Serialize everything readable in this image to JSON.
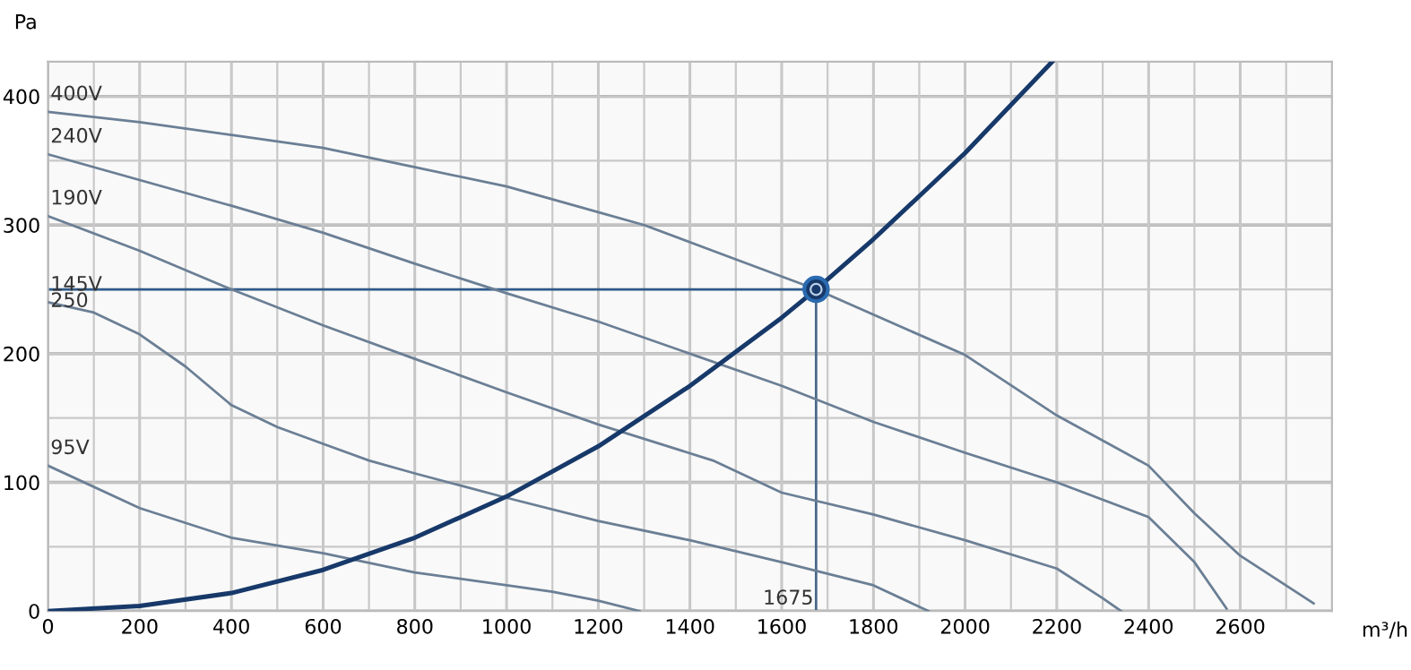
{
  "chart_data": {
    "type": "line",
    "xlabel": "m³/h",
    "ylabel": "Pa",
    "xlim": [
      0,
      2800
    ],
    "ylim": [
      0,
      427
    ],
    "xticks": [
      0,
      {
        "value": 100,
        "label": null
      },
      200,
      {
        "value": 300,
        "label": null
      },
      400,
      {
        "value": 500,
        "label": null
      },
      600,
      {
        "value": 700,
        "label": null
      },
      800,
      {
        "value": 900,
        "label": null
      },
      1000,
      {
        "value": 1100,
        "label": null
      },
      1200,
      {
        "value": 1300,
        "label": null
      },
      1400,
      {
        "value": 1500,
        "label": null
      },
      1600,
      {
        "value": 1700,
        "label": null
      },
      1800,
      {
        "value": 1900,
        "label": null
      },
      2000,
      {
        "value": 2100,
        "label": null
      },
      2200,
      {
        "value": 2300,
        "label": null
      },
      2400,
      {
        "value": 2500,
        "label": null
      },
      2600,
      {
        "value": 2700,
        "label": null
      }
    ],
    "yticks": [
      0,
      {
        "value": 50,
        "label": null
      },
      100,
      {
        "value": 150,
        "label": null
      },
      200,
      {
        "value": 250,
        "label": null
      },
      300,
      {
        "value": 350,
        "label": null
      },
      400
    ],
    "grid": true,
    "legend": false,
    "marker": "none",
    "line_style": "solid",
    "series": [
      {
        "name": "400V",
        "color": "#6b7f95",
        "x": [
          0,
          200,
          400,
          600,
          800,
          1000,
          1200,
          1300,
          1450,
          1675,
          2000,
          2200,
          2400,
          2500,
          2600,
          2760
        ],
        "values": [
          388,
          380,
          370,
          360,
          345,
          330,
          310,
          300,
          280,
          250,
          199,
          152,
          113,
          76,
          43,
          6
        ]
      },
      {
        "name": "240V",
        "color": "#6b7f95",
        "x": [
          0,
          400,
          600,
          800,
          1000,
          1200,
          1400,
          1600,
          1800,
          2000,
          2200,
          2400,
          2500,
          2570
        ],
        "values": [
          355,
          315,
          294,
          270,
          247,
          225,
          200,
          175,
          147,
          123,
          100,
          73,
          38,
          2
        ]
      },
      {
        "name": "190V",
        "color": "#6b7f95",
        "x": [
          0,
          200,
          400,
          600,
          800,
          1000,
          1200,
          1450,
          1600,
          1800,
          2000,
          2200,
          2300,
          2340
        ],
        "values": [
          307,
          280,
          250,
          222,
          196,
          170,
          145,
          117,
          92,
          75,
          55,
          33,
          10,
          0
        ]
      },
      {
        "name": "145V",
        "color": "#6b7f95",
        "x": [
          0,
          100,
          200,
          300,
          400,
          500,
          600,
          700,
          800,
          1000,
          1200,
          1400,
          1600,
          1800,
          1920
        ],
        "values": [
          240,
          232,
          215,
          190,
          160,
          143,
          130,
          117,
          107,
          88,
          70,
          55,
          38,
          20,
          0
        ]
      },
      {
        "name": "95V",
        "color": "#6b7f95",
        "x": [
          0,
          200,
          400,
          600,
          800,
          1000,
          1100,
          1200,
          1290
        ],
        "values": [
          113,
          80,
          57,
          45,
          30,
          20,
          15,
          8,
          0
        ]
      },
      {
        "color": "#17396a",
        "x": [
          0,
          200,
          400,
          600,
          800,
          1000,
          1200,
          1400,
          1600,
          1675,
          1800,
          2000,
          2190
        ],
        "values": [
          0,
          4,
          14,
          32,
          57,
          89,
          128,
          175,
          228,
          250,
          289,
          356,
          427
        ]
      },
      {
        "type": "scatter",
        "marker": "circle",
        "color": "#17396a",
        "x": [
          1675
        ],
        "values": [
          250
        ]
      }
    ],
    "ref_lines": [
      {
        "axis": "y",
        "value": 250,
        "label": "250",
        "color": "#2f5a8a"
      },
      {
        "axis": "x",
        "value": 1675,
        "label": "1675",
        "color": "#4a6a8a"
      }
    ]
  }
}
